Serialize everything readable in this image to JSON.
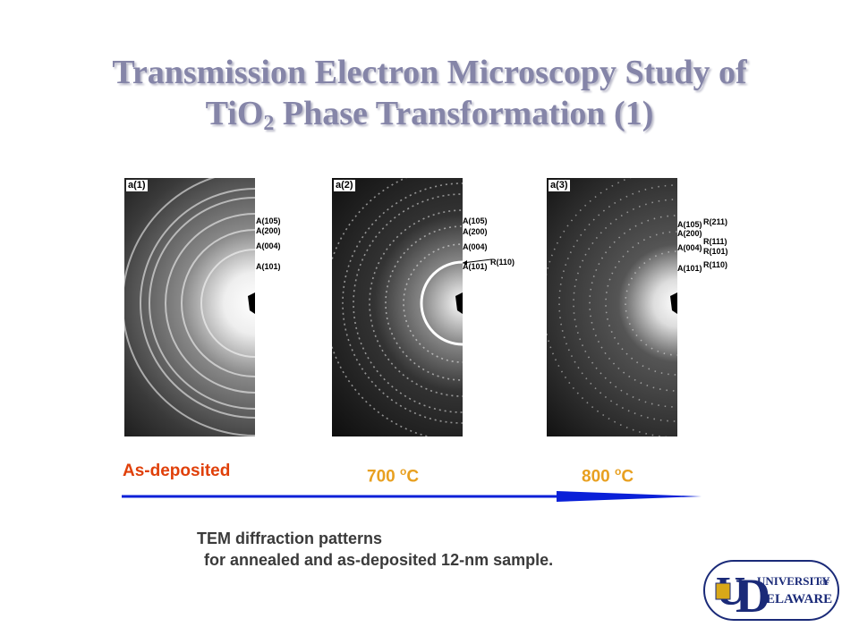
{
  "title": {
    "line1": "Transmission Electron Microscopy Study of",
    "line2_pre": "TiO",
    "line2_sub": "2",
    "line2_post": " Phase Transformation (1)"
  },
  "panels": [
    {
      "tag": "a(1)",
      "labels": [
        "A(105)",
        "A(200)",
        "A(004)",
        "A(101)"
      ]
    },
    {
      "tag": "a(2)",
      "labels": [
        "A(105)",
        "A(200)",
        "A(004)",
        "A(101)"
      ],
      "right_labels": [
        "R(110)"
      ]
    },
    {
      "tag": "a(3)",
      "labels": [
        "A(105)",
        "A(200)",
        "A(004)",
        "A(101)"
      ],
      "right_labels": [
        "R(211)",
        "R(111)",
        "R(101)",
        "R(110)"
      ]
    }
  ],
  "conditions": [
    {
      "text": "As-deposited",
      "color": "#e0400a"
    },
    {
      "pre": "700 ",
      "sup": "o",
      "post": "C",
      "color": "#e8a020"
    },
    {
      "pre": "800 ",
      "sup": "o",
      "post": "C",
      "color": "#e8a020"
    }
  ],
  "arrow_color": "#0a20d8",
  "caption": {
    "line1": "TEM diffraction patterns",
    "line2": "for annealed and as-deposited 12-nm sample."
  },
  "logo": {
    "text_a": "UNIVERSITY",
    "text_of": "OF",
    "text_b": "ELAWARE",
    "letter_u": "U",
    "letter_d": "D",
    "color": "#1a2a78",
    "accent": "#d8a818"
  }
}
